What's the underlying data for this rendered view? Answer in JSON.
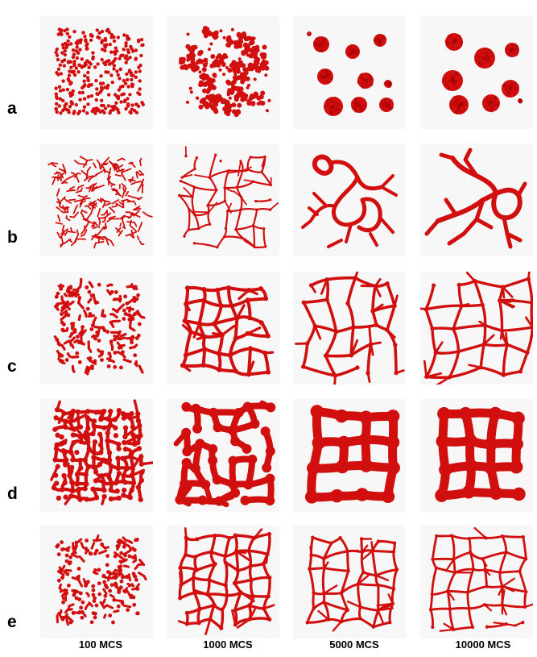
{
  "row_labels": [
    "a",
    "b",
    "c",
    "d",
    "e"
  ],
  "column_labels": [
    "100 MCS",
    "1000 MCS",
    "5000 MCS",
    "10000 MCS"
  ],
  "colors": {
    "particle": "#d20f0f",
    "panel_background": "#f7f7f7"
  },
  "rows": [
    {
      "label": "a",
      "morphology": "spherical clusters"
    },
    {
      "label": "b",
      "morphology": "thin branched network"
    },
    {
      "label": "c",
      "morphology": "branched chain network"
    },
    {
      "label": "d",
      "morphology": "thick bicontinuous network"
    },
    {
      "label": "e",
      "morphology": "fine chain network"
    }
  ]
}
